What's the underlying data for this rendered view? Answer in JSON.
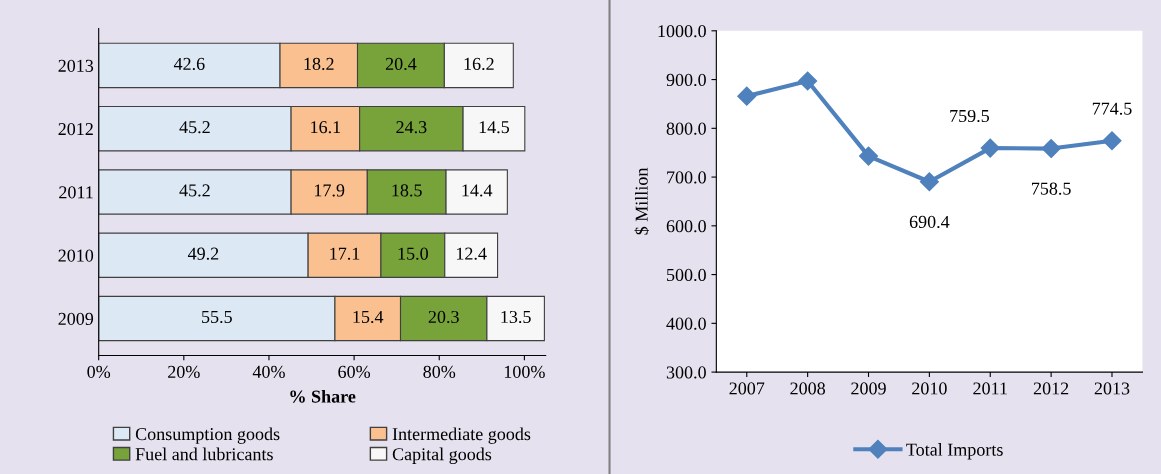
{
  "chart_data": [
    {
      "type": "bar",
      "orientation": "horizontal",
      "stacked": true,
      "xlabel": "% Share",
      "categories": [
        "2013",
        "2012",
        "2011",
        "2010",
        "2009"
      ],
      "series": [
        {
          "name": "Consumption goods",
          "color": "#dce9f5",
          "values": [
            42.6,
            45.2,
            45.2,
            49.2,
            55.5
          ]
        },
        {
          "name": "Intermediate goods",
          "color": "#fac090",
          "values": [
            18.2,
            16.1,
            17.9,
            17.1,
            15.4
          ]
        },
        {
          "name": "Fuel and lubricants",
          "color": "#77a33a",
          "values": [
            20.4,
            24.3,
            18.5,
            15.0,
            20.3
          ],
          "value_labels": [
            "20.4",
            "24.3",
            "18.5",
            "15.0",
            "20.3"
          ]
        },
        {
          "name": "Capital goods",
          "color": "#f7f7f7",
          "values": [
            16.2,
            14.5,
            14.4,
            12.4,
            13.5
          ]
        }
      ],
      "xlim": [
        0,
        105
      ],
      "xticks": [
        {
          "value": 0,
          "label": "0%"
        },
        {
          "value": 20,
          "label": "20%"
        },
        {
          "value": 40,
          "label": "40%"
        },
        {
          "value": 60,
          "label": "60%"
        },
        {
          "value": 80,
          "label": "80%"
        },
        {
          "value": 100,
          "label": "100%"
        }
      ],
      "data_labels": true,
      "grid": false,
      "legend": "bottom"
    },
    {
      "type": "line",
      "ylabel": "$ Million",
      "categories": [
        "2007",
        "2008",
        "2009",
        "2010",
        "2011",
        "2012",
        "2013"
      ],
      "series": [
        {
          "name": "Total Imports",
          "color": "#4f81bd",
          "values": [
            866,
            897,
            743,
            690.4,
            759.5,
            758.5,
            774.5
          ],
          "value_labels": [
            null,
            null,
            null,
            "690.4",
            "759.5",
            "758.5",
            "774.5"
          ]
        }
      ],
      "ylim": [
        300,
        1000
      ],
      "yticks": [
        {
          "value": 300,
          "label": "300.0"
        },
        {
          "value": 400,
          "label": "400.0"
        },
        {
          "value": 500,
          "label": "500.0"
        },
        {
          "value": 600,
          "label": "600.0"
        },
        {
          "value": 700,
          "label": "700.0"
        },
        {
          "value": 800,
          "label": "800.0"
        },
        {
          "value": 900,
          "label": "900.0"
        },
        {
          "value": 1000,
          "label": "1000.0"
        }
      ],
      "marker": "diamond",
      "line_style": "solid",
      "grid": false,
      "legend": "bottom"
    }
  ]
}
